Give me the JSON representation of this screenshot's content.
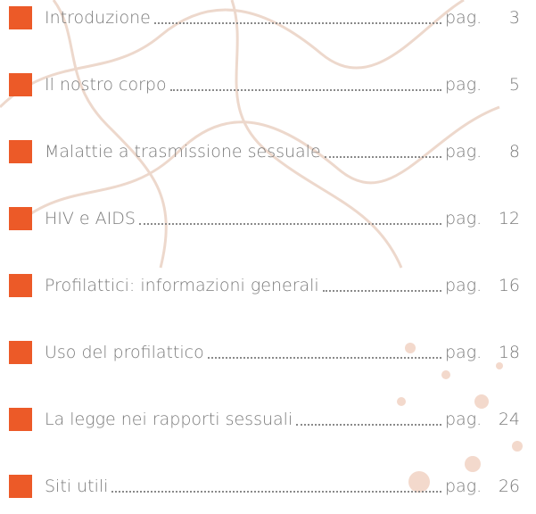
{
  "toc": {
    "entries": [
      {
        "title": "Introduzione",
        "label": "pag.",
        "page": 3
      },
      {
        "title": "Il nostro corpo",
        "label": "pag.",
        "page": 5
      },
      {
        "title": "Malattie a trasmissione sessuale",
        "label": "pag.",
        "page": 8
      },
      {
        "title": "HIV e AIDS",
        "label": "pag.",
        "page": 12
      },
      {
        "title": "Profilattici: informazioni generali",
        "label": "pag.",
        "page": 16
      },
      {
        "title": "Uso del profilattico",
        "label": "pag.",
        "page": 18
      },
      {
        "title": "La legge nei rapporti sessuali",
        "label": "pag.",
        "page": 24
      },
      {
        "title": "Siti utili",
        "label": "pag.",
        "page": 26
      }
    ]
  }
}
